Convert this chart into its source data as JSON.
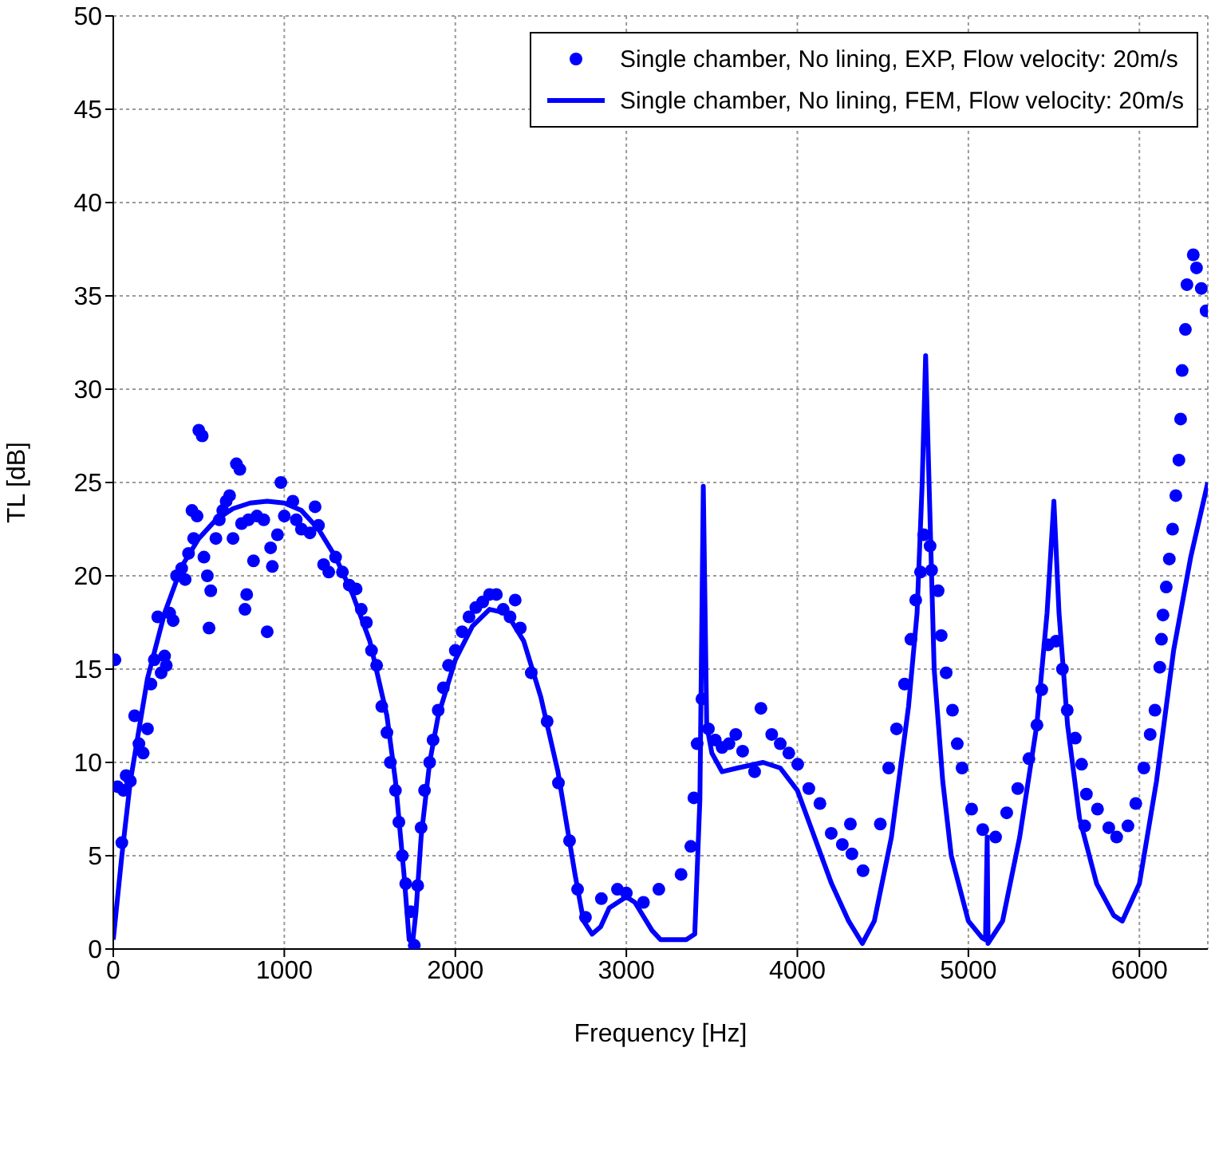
{
  "chart_data": {
    "type": "scatter",
    "xlabel": "Frequency [Hz]",
    "ylabel": "TL [dB]",
    "xlim": [
      0,
      6400
    ],
    "ylim": [
      0,
      50
    ],
    "xticks": [
      0,
      1000,
      2000,
      3000,
      4000,
      5000,
      6000
    ],
    "yticks": [
      0,
      5,
      10,
      15,
      20,
      25,
      30,
      35,
      40,
      45,
      50
    ],
    "grid": true,
    "legend": "top right",
    "series": [
      {
        "name": "Single chamber, No lining, EXP, Flow velocity: 20m/s",
        "type": "scatter",
        "marker": "circle",
        "color": "#0000ff",
        "x": [
          10,
          25,
          50,
          60,
          75,
          100,
          125,
          150,
          175,
          200,
          220,
          240,
          260,
          280,
          300,
          310,
          330,
          350,
          370,
          400,
          420,
          440,
          460,
          470,
          490,
          500,
          520,
          530,
          550,
          560,
          570,
          600,
          620,
          640,
          660,
          680,
          700,
          720,
          740,
          750,
          770,
          780,
          790,
          820,
          840,
          880,
          900,
          920,
          930,
          960,
          980,
          1000,
          1050,
          1070,
          1100,
          1150,
          1180,
          1200,
          1230,
          1260,
          1300,
          1340,
          1380,
          1420,
          1450,
          1480,
          1510,
          1540,
          1570,
          1600,
          1620,
          1650,
          1670,
          1690,
          1710,
          1740,
          1760,
          1780,
          1800,
          1820,
          1850,
          1870,
          1900,
          1930,
          1960,
          2000,
          2040,
          2080,
          2120,
          2160,
          2200,
          2240,
          2280,
          2320,
          2350,
          2380,
          2444,
          2537,
          2603,
          2668,
          2715,
          2761,
          2854,
          2948,
          3000,
          3100,
          3190,
          3320,
          3377,
          3395,
          3414,
          3442,
          3480,
          3520,
          3560,
          3600,
          3640,
          3680,
          3750,
          3787,
          3850,
          3900,
          3950,
          4002,
          4067,
          4132,
          4198,
          4263,
          4310,
          4319,
          4384,
          4485,
          4534,
          4580,
          4627,
          4664,
          4692,
          4720,
          4739,
          4776,
          4785,
          4823,
          4841,
          4870,
          4907,
          4935,
          4963,
          5019,
          5084,
          5159,
          5224,
          5289,
          5354,
          5401,
          5429,
          5466,
          5513,
          5550,
          5578,
          5625,
          5662,
          5680,
          5690,
          5755,
          5821,
          5867,
          5933,
          5979,
          6026,
          6063,
          6091,
          6119,
          6129,
          6138,
          6157,
          6175,
          6194,
          6213,
          6231,
          6241,
          6250,
          6269,
          6278,
          6315,
          6334,
          6362,
          6390
        ],
        "values": [
          15.5,
          8.7,
          5.7,
          8.5,
          9.3,
          9.0,
          12.5,
          11.0,
          10.5,
          11.8,
          14.2,
          15.5,
          17.8,
          14.8,
          15.7,
          15.2,
          18.0,
          17.6,
          20.0,
          20.4,
          19.8,
          21.2,
          23.5,
          22.0,
          23.2,
          27.8,
          27.5,
          21.0,
          20.0,
          17.2,
          19.2,
          22.0,
          23.0,
          23.5,
          24.0,
          24.3,
          22.0,
          26.0,
          25.7,
          22.8,
          18.2,
          19.0,
          23.0,
          20.8,
          23.2,
          23.0,
          17.0,
          21.5,
          20.5,
          22.2,
          25.0,
          23.2,
          24.0,
          23.0,
          22.5,
          22.3,
          23.7,
          22.7,
          20.6,
          20.2,
          21.0,
          20.2,
          19.5,
          19.3,
          18.2,
          17.5,
          16.0,
          15.2,
          13.0,
          11.6,
          10.0,
          8.5,
          6.8,
          5.0,
          3.5,
          2.0,
          0.2,
          3.4,
          6.5,
          8.5,
          10.0,
          11.2,
          12.8,
          14.0,
          15.2,
          16.0,
          17.0,
          17.8,
          18.3,
          18.6,
          19.0,
          19.0,
          18.2,
          17.8,
          18.7,
          17.2,
          14.8,
          12.2,
          8.9,
          5.8,
          3.2,
          1.7,
          2.7,
          3.2,
          3.0,
          2.5,
          3.2,
          4.0,
          5.5,
          8.1,
          11.0,
          13.4,
          11.8,
          11.2,
          10.8,
          11.0,
          11.5,
          10.6,
          9.5,
          12.9,
          11.5,
          11.0,
          10.5,
          9.9,
          8.6,
          7.8,
          6.2,
          5.6,
          6.7,
          5.1,
          4.2,
          6.7,
          9.7,
          11.8,
          14.2,
          16.6,
          18.7,
          20.2,
          22.2,
          21.6,
          20.3,
          19.2,
          16.8,
          14.8,
          12.8,
          11.0,
          9.7,
          7.5,
          6.4,
          6.0,
          7.3,
          8.6,
          10.2,
          12.0,
          13.9,
          16.3,
          16.5,
          15.0,
          12.8,
          11.3,
          9.9,
          6.6,
          8.3,
          7.5,
          6.5,
          6.0,
          6.6,
          7.8,
          9.7,
          11.5,
          12.8,
          15.1,
          16.6,
          17.9,
          19.4,
          20.9,
          22.5,
          24.3,
          26.2,
          28.4,
          31.0,
          33.2,
          35.6,
          37.2,
          36.5,
          35.4,
          34.2
        ]
      },
      {
        "name": "Single chamber, No lining, FEM, Flow velocity: 20m/s",
        "type": "line",
        "line_style": "solid",
        "color": "#0000ff",
        "x": [
          0,
          50,
          100,
          200,
          300,
          400,
          500,
          600,
          700,
          800,
          900,
          1000,
          1100,
          1200,
          1300,
          1400,
          1500,
          1600,
          1650,
          1700,
          1730,
          1750,
          1770,
          1800,
          1850,
          1900,
          2000,
          2100,
          2200,
          2300,
          2400,
          2500,
          2600,
          2700,
          2750,
          2800,
          2850,
          2900,
          3000,
          3050,
          3150,
          3200,
          3350,
          3400,
          3430,
          3450,
          3470,
          3500,
          3560,
          3650,
          3800,
          3900,
          4000,
          4100,
          4200,
          4300,
          4380,
          4450,
          4550,
          4650,
          4700,
          4730,
          4750,
          4770,
          4800,
          4850,
          4900,
          5000,
          5080,
          5100,
          5110,
          5115,
          5200,
          5300,
          5400,
          5460,
          5500,
          5530,
          5580,
          5650,
          5750,
          5850,
          5900,
          6000,
          6100,
          6200,
          6300,
          6400
        ],
        "values": [
          0.5,
          5,
          9,
          14.5,
          18,
          20.5,
          22,
          23,
          23.6,
          23.9,
          24.0,
          23.9,
          23.5,
          22.5,
          21,
          19,
          16.5,
          12.5,
          9,
          4,
          0.5,
          0.3,
          2,
          6,
          10,
          12.5,
          15.5,
          17.3,
          18.2,
          18.0,
          16.5,
          13.5,
          9.5,
          4,
          1.5,
          0.8,
          1.2,
          2.2,
          2.8,
          2.5,
          1.0,
          0.5,
          0.5,
          0.8,
          8,
          24.8,
          12,
          10.5,
          9.5,
          9.7,
          10.0,
          9.7,
          8.5,
          6,
          3.5,
          1.5,
          0.3,
          1.5,
          6,
          13,
          18,
          25,
          31.8,
          25,
          15,
          9,
          5,
          1.5,
          0.6,
          0.5,
          6,
          0.3,
          1.5,
          6,
          12,
          18,
          24,
          18,
          12,
          7,
          3.5,
          1.8,
          1.5,
          3.5,
          9,
          16,
          21,
          25
        ]
      }
    ]
  }
}
